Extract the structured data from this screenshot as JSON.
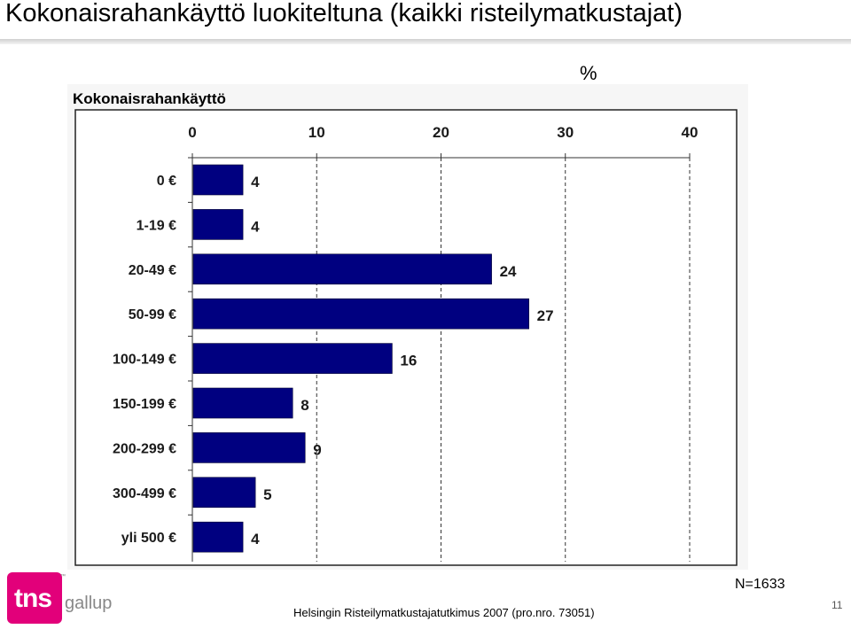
{
  "slide": {
    "title": "Kokonaisrahankäyttö luokiteltuna (kaikki risteilymatkustajat)",
    "unit": "%",
    "n_label": "N=1633",
    "source": "Helsingin Risteilymatkustajatutkimus 2007 (pro.nro. 73051)",
    "page_number": "11"
  },
  "logo": {
    "mark_text": "tns",
    "trademark": "™",
    "name_text": "gallup",
    "colors": {
      "mark": "#e2007a",
      "name": "#888888"
    }
  },
  "chart_data": {
    "type": "bar",
    "orientation": "horizontal",
    "title": "Kokonaisrahankäyttö",
    "categories": [
      "0 €",
      "1-19 €",
      "20-49 €",
      "50-99 €",
      "100-149 €",
      "150-199 €",
      "200-299 €",
      "300-499 €",
      "yli 500 €"
    ],
    "values": [
      4,
      4,
      24,
      27,
      16,
      8,
      9,
      5,
      4
    ],
    "xlim": [
      0,
      40
    ],
    "x_ticks": [
      0,
      10,
      20,
      30,
      40
    ],
    "x_axis_position": "top",
    "grid": "vertical dashed",
    "legend": "none",
    "colors": {
      "bar": "#000080",
      "plot_background": "#ffffff",
      "panel_background": "#f6f6f6"
    }
  }
}
